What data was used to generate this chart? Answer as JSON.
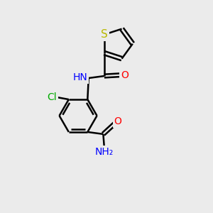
{
  "background_color": "#ebebeb",
  "bond_color": "#000000",
  "atom_colors": {
    "S": "#b8b800",
    "N": "#0000ff",
    "O": "#ff0000",
    "Cl": "#00aa00",
    "C": "#000000",
    "H": "#555555"
  },
  "bond_width": 1.8,
  "font_size": 10,
  "figsize": [
    3.0,
    3.0
  ],
  "dpi": 100
}
